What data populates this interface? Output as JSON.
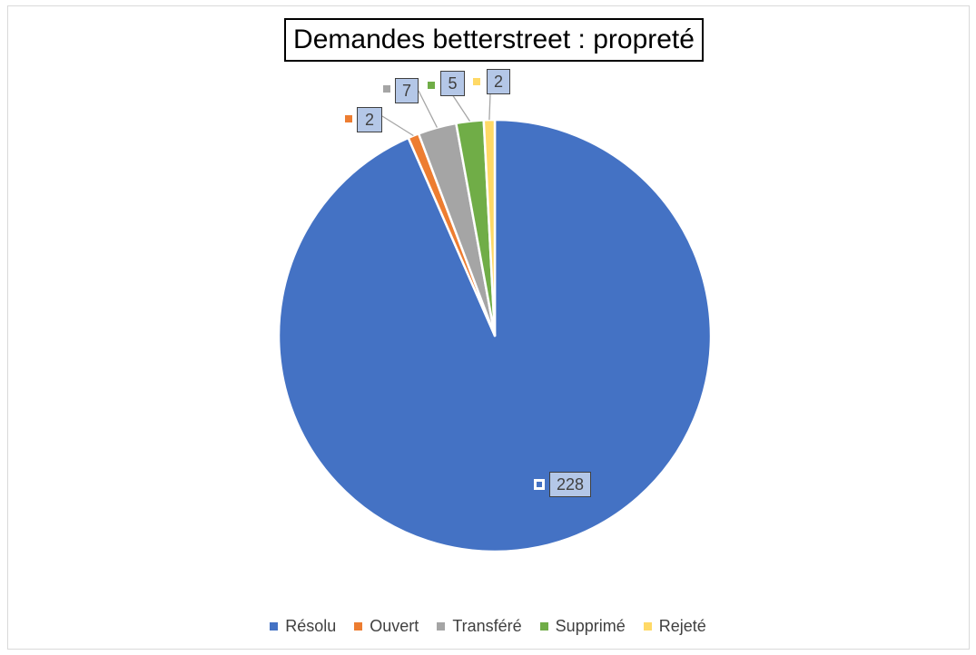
{
  "chart_data": {
    "type": "pie",
    "title": "Demandes betterstreet : propreté",
    "categories": [
      "Résolu",
      "Ouvert",
      "Transféré",
      "Supprimé",
      "Rejeté"
    ],
    "values": [
      228,
      2,
      7,
      5,
      2
    ],
    "data_labels": [
      "228",
      "2",
      "7",
      "5",
      "2"
    ],
    "colors": [
      "#4472c4",
      "#ed7d31",
      "#a5a5a5",
      "#70ad47",
      "#ffd966"
    ],
    "legend": "bottom",
    "start_angle": "12 o'clock",
    "direction": "clockwise"
  }
}
